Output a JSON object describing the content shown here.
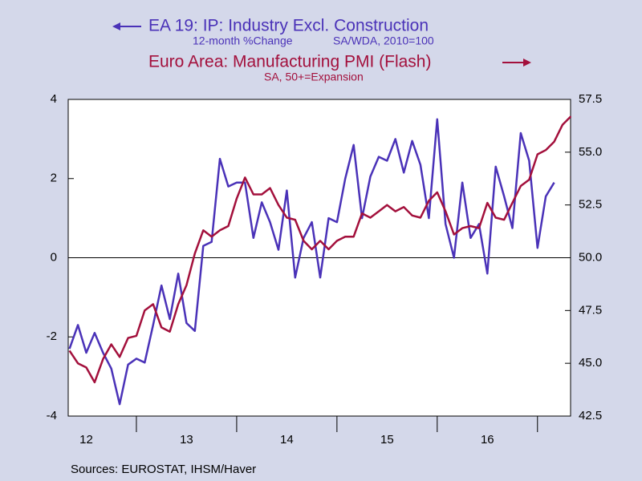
{
  "chart_data": {
    "type": "line",
    "x": [
      2012.333,
      2012.417,
      2012.5,
      2012.583,
      2012.667,
      2012.75,
      2012.833,
      2012.917,
      2013.0,
      2013.083,
      2013.167,
      2013.25,
      2013.333,
      2013.417,
      2013.5,
      2013.583,
      2013.667,
      2013.75,
      2013.833,
      2013.917,
      2014.0,
      2014.083,
      2014.167,
      2014.25,
      2014.333,
      2014.417,
      2014.5,
      2014.583,
      2014.667,
      2014.75,
      2014.833,
      2014.917,
      2015.0,
      2015.083,
      2015.167,
      2015.25,
      2015.333,
      2015.417,
      2015.5,
      2015.583,
      2015.667,
      2015.75,
      2015.833,
      2015.917,
      2016.0,
      2016.083,
      2016.167,
      2016.25,
      2016.333,
      2016.417,
      2016.5,
      2016.583,
      2016.667,
      2016.75,
      2016.833,
      2016.917,
      2017.0,
      2017.083,
      2017.167,
      2017.25,
      2017.333
    ],
    "series": [
      {
        "name": "EA 19: IP: Industry Excl. Construction",
        "units": [
          "12-month %Change",
          "SA/WDA, 2010=100"
        ],
        "color": "#4a32b8",
        "axis": "y",
        "values": [
          -2.3,
          -1.7,
          -2.4,
          -1.9,
          -2.4,
          -2.8,
          -3.7,
          -2.7,
          -2.55,
          -2.65,
          -1.7,
          -0.7,
          -1.55,
          -0.4,
          -1.65,
          -1.85,
          0.3,
          0.4,
          2.5,
          1.8,
          1.9,
          1.9,
          0.5,
          1.4,
          0.9,
          0.2,
          1.7,
          -0.5,
          0.5,
          0.9,
          -0.5,
          1.0,
          0.9,
          2.0,
          2.85,
          1.0,
          2.05,
          2.55,
          2.45,
          3.0,
          2.15,
          2.95,
          2.35,
          1.0,
          3.5,
          0.85,
          0.0,
          1.9,
          0.5,
          0.85,
          -0.4,
          2.3,
          1.55,
          0.75,
          3.15,
          2.45,
          0.25,
          1.55,
          1.9,
          null,
          null
        ]
      },
      {
        "name": "Euro Area: Manufacturing PMI (Flash)",
        "units": [
          "SA, 50+=Expansion"
        ],
        "color": "#a3103c",
        "axis": "y2",
        "values": [
          45.6,
          45.0,
          44.8,
          44.1,
          45.2,
          45.9,
          45.3,
          46.2,
          46.3,
          47.5,
          47.8,
          46.7,
          46.5,
          47.8,
          48.7,
          50.2,
          51.3,
          51.0,
          51.3,
          51.5,
          52.8,
          53.8,
          53.0,
          53.0,
          53.3,
          52.5,
          51.9,
          51.8,
          50.8,
          50.4,
          50.8,
          50.4,
          50.8,
          51.0,
          51.0,
          52.1,
          51.9,
          52.2,
          52.5,
          52.2,
          52.4,
          52.0,
          51.9,
          52.7,
          53.1,
          52.2,
          51.1,
          51.4,
          51.5,
          51.4,
          52.6,
          51.9,
          51.8,
          52.6,
          53.4,
          53.7,
          54.9,
          55.1,
          55.5,
          56.3,
          56.7
        ]
      }
    ],
    "xlim": [
      2012.32,
      2017.33
    ],
    "xticks": [
      2013,
      2014,
      2015,
      2016,
      2017
    ],
    "x_labels": [
      {
        "value": 2012.5,
        "label": "12"
      },
      {
        "value": 2013.5,
        "label": "13"
      },
      {
        "value": 2014.5,
        "label": "14"
      },
      {
        "value": 2015.5,
        "label": "15"
      },
      {
        "value": 2016.5,
        "label": "16"
      }
    ],
    "ylim": [
      -4,
      4
    ],
    "yticks": [
      -4,
      -2,
      0,
      2,
      4
    ],
    "y2lim": [
      42.5,
      57.5
    ],
    "y2ticks": [
      42.5,
      {
        "value": 45,
        "label": "45.0"
      },
      47.5,
      {
        "value": 50,
        "label": "50.0"
      },
      52.5,
      {
        "value": 55,
        "label": "55.0"
      },
      57.5
    ],
    "zero_line": true,
    "source": "Sources:  EUROSTAT, IHSM/Haver"
  }
}
